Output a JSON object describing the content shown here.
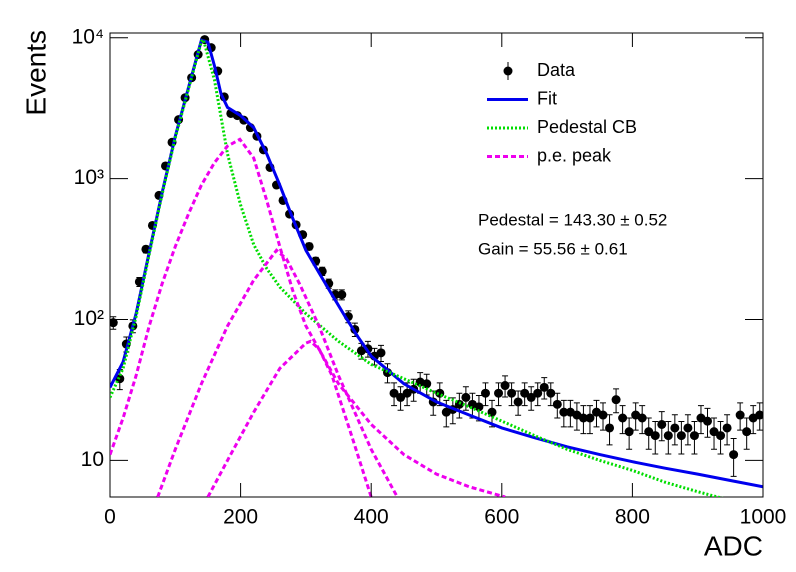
{
  "chart_data": {
    "type": "scatter",
    "xlabel": "ADC",
    "ylabel": "Events",
    "log_y": true,
    "legend": "top-right",
    "xlim": [
      0,
      1000
    ],
    "ylim": [
      5.5,
      10800
    ],
    "xticks": [
      0,
      200,
      400,
      600,
      800,
      1000
    ],
    "yticks": [
      10,
      {
        "value": 100,
        "label": "10²"
      },
      {
        "value": 1000,
        "label": "10³"
      },
      {
        "value": 10000,
        "label": "10⁴"
      }
    ],
    "annotations": [
      "Pedestal = 143.30 ± 0.52",
      "Gain = 55.56 ± 0.61"
    ],
    "series": [
      {
        "name": "Data",
        "color": "#000000",
        "style": "errorbar",
        "x": [
          5,
          15,
          25,
          35,
          45,
          55,
          65,
          75,
          85,
          95,
          105,
          115,
          125,
          135,
          145,
          155,
          165,
          175,
          185,
          195,
          205,
          215,
          225,
          235,
          245,
          255,
          265,
          275,
          285,
          295,
          305,
          315,
          325,
          335,
          345,
          355,
          365,
          375,
          385,
          395,
          405,
          415,
          425,
          435,
          445,
          455,
          465,
          475,
          485,
          495,
          505,
          515,
          525,
          535,
          545,
          555,
          565,
          575,
          585,
          595,
          605,
          615,
          625,
          635,
          645,
          655,
          665,
          675,
          685,
          695,
          705,
          715,
          725,
          735,
          745,
          755,
          765,
          775,
          785,
          795,
          805,
          815,
          825,
          835,
          845,
          855,
          865,
          875,
          885,
          895,
          905,
          915,
          925,
          935,
          945,
          955,
          965,
          975,
          985,
          995
        ],
        "values": [
          95,
          38,
          67,
          90,
          185,
          315,
          465,
          760,
          1230,
          1810,
          2620,
          3750,
          5200,
          7600,
          9700,
          8500,
          5800,
          3800,
          2900,
          2800,
          2600,
          2300,
          2000,
          1600,
          1200,
          900,
          700,
          560,
          470,
          400,
          330,
          260,
          220,
          180,
          150,
          150,
          105,
          85,
          60,
          62,
          55,
          58,
          42,
          30,
          28,
          30,
          32,
          36,
          35,
          26,
          30,
          22,
          23,
          25,
          28,
          25,
          24,
          30,
          22,
          30,
          34,
          30,
          26,
          30,
          28,
          30,
          33,
          30,
          25,
          22,
          22,
          21,
          20,
          20,
          22,
          21,
          17,
          27,
          20,
          16,
          21,
          20,
          16,
          15,
          18,
          15,
          17,
          15,
          17,
          15,
          20,
          19,
          16,
          15,
          17,
          11,
          21,
          16,
          20,
          21
        ],
        "errors": [
          9.7,
          6.2,
          8.2,
          9.5,
          13.6,
          17.7,
          21.6,
          27.6,
          35.1,
          42.5,
          51.2,
          61.2,
          72.1,
          87.2,
          98.5,
          92.2,
          76.2,
          61.6,
          53.9,
          52.9,
          51.0,
          48.0,
          44.7,
          40.0,
          34.6,
          30.0,
          26.5,
          23.7,
          21.7,
          20.0,
          18.2,
          16.1,
          14.8,
          13.4,
          12.2,
          12.2,
          10.2,
          9.2,
          7.7,
          7.9,
          7.4,
          7.6,
          6.5,
          5.5,
          5.3,
          5.5,
          5.7,
          6.0,
          5.9,
          5.1,
          5.5,
          4.7,
          4.8,
          5.0,
          5.3,
          5.0,
          4.9,
          5.5,
          4.7,
          5.5,
          5.8,
          5.5,
          5.1,
          5.5,
          5.3,
          5.5,
          5.7,
          5.5,
          5.0,
          4.7,
          4.7,
          4.6,
          4.5,
          4.5,
          4.7,
          4.6,
          4.1,
          5.2,
          4.5,
          4.0,
          4.6,
          4.5,
          4.0,
          3.9,
          4.2,
          3.9,
          4.1,
          3.9,
          4.1,
          3.9,
          4.5,
          4.4,
          4.0,
          3.9,
          4.1,
          3.3,
          4.6,
          4.0,
          4.5,
          4.6
        ]
      },
      {
        "name": "Fit",
        "color": "#0000ee",
        "style": "solid",
        "x": [
          0,
          20,
          40,
          60,
          80,
          100,
          120,
          140,
          150,
          160,
          170,
          180,
          200,
          220,
          240,
          260,
          280,
          300,
          320,
          340,
          360,
          380,
          400,
          450,
          500,
          550,
          600,
          650,
          700,
          750,
          800,
          850,
          900,
          950,
          1000
        ],
        "values": [
          33,
          50,
          110,
          300,
          800,
          2000,
          4400,
          9600,
          9300,
          6300,
          4000,
          3200,
          2800,
          2300,
          1500,
          900,
          520,
          310,
          215,
          150,
          105,
          75,
          55,
          35,
          26,
          21,
          17,
          14.5,
          12.5,
          11,
          9.8,
          8.8,
          8,
          7.2,
          6.5
        ]
      },
      {
        "name": "Pedestal CB",
        "color": "#00dd00",
        "style": "dotted",
        "x": [
          0,
          20,
          40,
          60,
          80,
          100,
          120,
          140,
          143,
          160,
          180,
          200,
          220,
          240,
          260,
          300,
          350,
          400,
          450,
          500,
          550,
          600,
          650,
          700,
          750,
          800,
          850,
          900,
          950
        ],
        "values": [
          28,
          45,
          105,
          290,
          780,
          1950,
          4300,
          9400,
          9700,
          5000,
          1500,
          650,
          340,
          230,
          170,
          110,
          70,
          48,
          38,
          30,
          24,
          19,
          15,
          12,
          10,
          8.5,
          7,
          6,
          5.2
        ]
      },
      {
        "name": "p.e. peak",
        "color": "#ee00ee",
        "style": "dashed",
        "components": [
          {
            "x": [
              0,
              20,
              40,
              60,
              80,
              100,
              120,
              140,
              160,
              180,
              199,
              220,
              240,
              260,
              280,
              300,
              350,
              400,
              450,
              500,
              550,
              605
            ],
            "values": [
              11,
              20,
              40,
              90,
              180,
              330,
              560,
              900,
              1300,
              1700,
              1900,
              1400,
              700,
              330,
              160,
              90,
              35,
              18,
              11,
              8,
              6.5,
              5.5
            ]
          },
          {
            "x": [
              73,
              100,
              140,
              180,
              220,
              255,
              270,
              290,
              320,
              350,
              400,
              440
            ],
            "values": [
              5.5,
              12,
              35,
              90,
              190,
              310,
              270,
              180,
              90,
              40,
              12,
              5.5
            ]
          },
          {
            "x": [
              150,
              180,
              220,
              260,
              300,
              307,
              320,
              340,
              370,
              400
            ],
            "values": [
              5.5,
              10,
              22,
              45,
              68,
              70,
              62,
              40,
              15,
              5.5
            ]
          }
        ]
      }
    ]
  }
}
